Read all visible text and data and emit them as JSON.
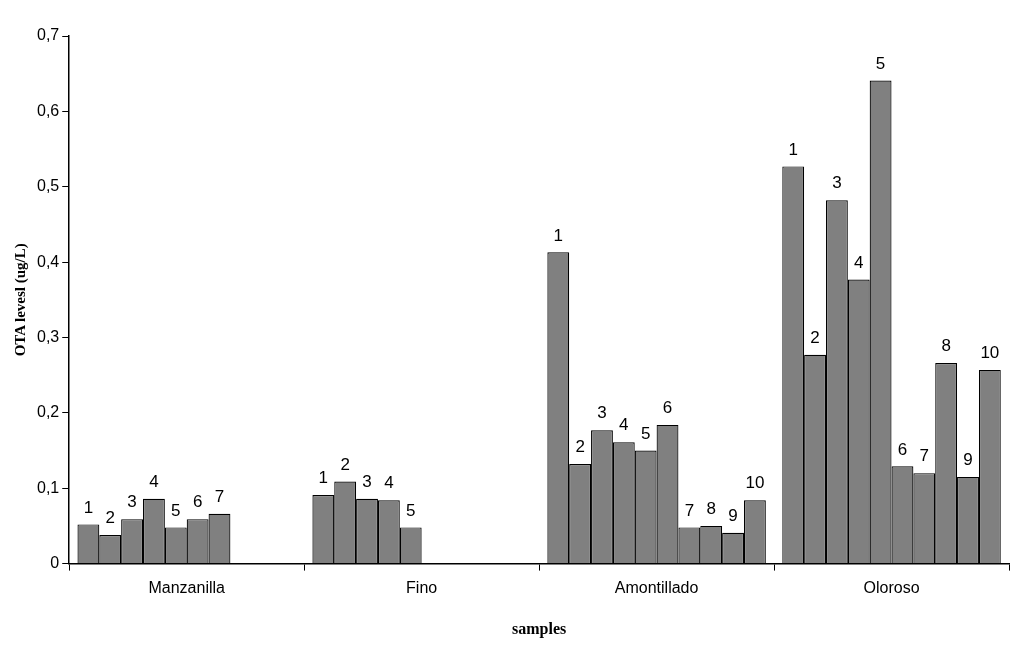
{
  "chart_data": {
    "type": "bar",
    "xlabel": "samples",
    "ylabel": "OTA levesl (ug/L)",
    "categories": [
      "Manzanilla",
      "Fino",
      "Amontillado",
      "Oloroso"
    ],
    "series": [
      {
        "name": "1",
        "color": "#808080",
        "values": [
          0.052,
          0.091,
          0.413,
          0.527
        ]
      },
      {
        "name": "2",
        "color": "#808080",
        "values": [
          0.038,
          0.109,
          0.132,
          0.277
        ]
      },
      {
        "name": "3",
        "color": "#808080",
        "values": [
          0.059,
          0.086,
          0.177,
          0.482
        ]
      },
      {
        "name": "4",
        "color": "#808080",
        "values": [
          0.086,
          0.084,
          0.161,
          0.377
        ]
      },
      {
        "name": "5",
        "color": "#808080",
        "values": [
          0.048,
          0.048,
          0.15,
          0.641
        ]
      },
      {
        "name": "6",
        "color": "#808080",
        "values": [
          0.059,
          null,
          0.184,
          0.129
        ]
      },
      {
        "name": "7",
        "color": "#808080",
        "values": [
          0.066,
          null,
          0.048,
          0.12
        ]
      },
      {
        "name": "8",
        "color": "#808080",
        "values": [
          null,
          null,
          0.05,
          0.266
        ]
      },
      {
        "name": "9",
        "color": "#808080",
        "values": [
          null,
          null,
          0.041,
          0.115
        ]
      },
      {
        "name": "10",
        "color": "#808080",
        "values": [
          null,
          null,
          0.084,
          0.257
        ]
      }
    ],
    "ylim": [
      0,
      0.7
    ],
    "yticks": [
      0,
      {
        "value": 0.1,
        "label": "0,1"
      },
      {
        "value": 0.2,
        "label": "0,2"
      },
      {
        "value": 0.3,
        "label": "0,3"
      },
      {
        "value": 0.4,
        "label": "0,4"
      },
      {
        "value": 0.5,
        "label": "0,5"
      },
      {
        "value": 0.6,
        "label": "0,6"
      },
      {
        "value": 0.7,
        "label": "0,7"
      }
    ],
    "grid": false,
    "legend": false
  }
}
